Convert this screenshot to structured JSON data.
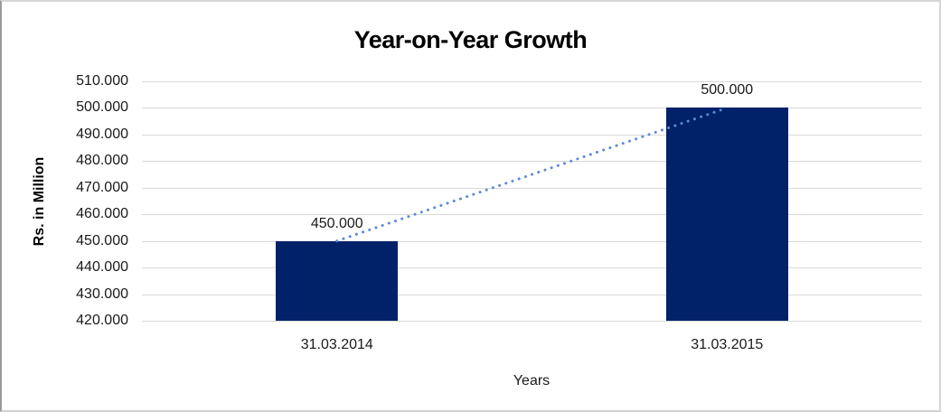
{
  "chart_data": {
    "type": "bar",
    "title": "Year-on-Year Growth",
    "xlabel": "Years",
    "ylabel": "Rs. in Million",
    "categories": [
      "31.03.2014",
      "31.03.2015"
    ],
    "values": [
      450000,
      500000
    ],
    "value_labels": [
      "450.000",
      "500.000"
    ],
    "ylim": [
      420000,
      510000
    ],
    "ytick_step": 10000,
    "ytick_labels": [
      "510.000",
      "500.000",
      "490.000",
      "480.000",
      "470.000",
      "460.000",
      "450.000",
      "440.000",
      "430.000",
      "420.000"
    ],
    "grid": true,
    "legend_position": "none",
    "bar_color": "#012169",
    "gridline_color": "#d9d9d9",
    "trendline": {
      "style": "dotted",
      "color": "#5b8bd5",
      "connects": "bar-tops"
    }
  }
}
